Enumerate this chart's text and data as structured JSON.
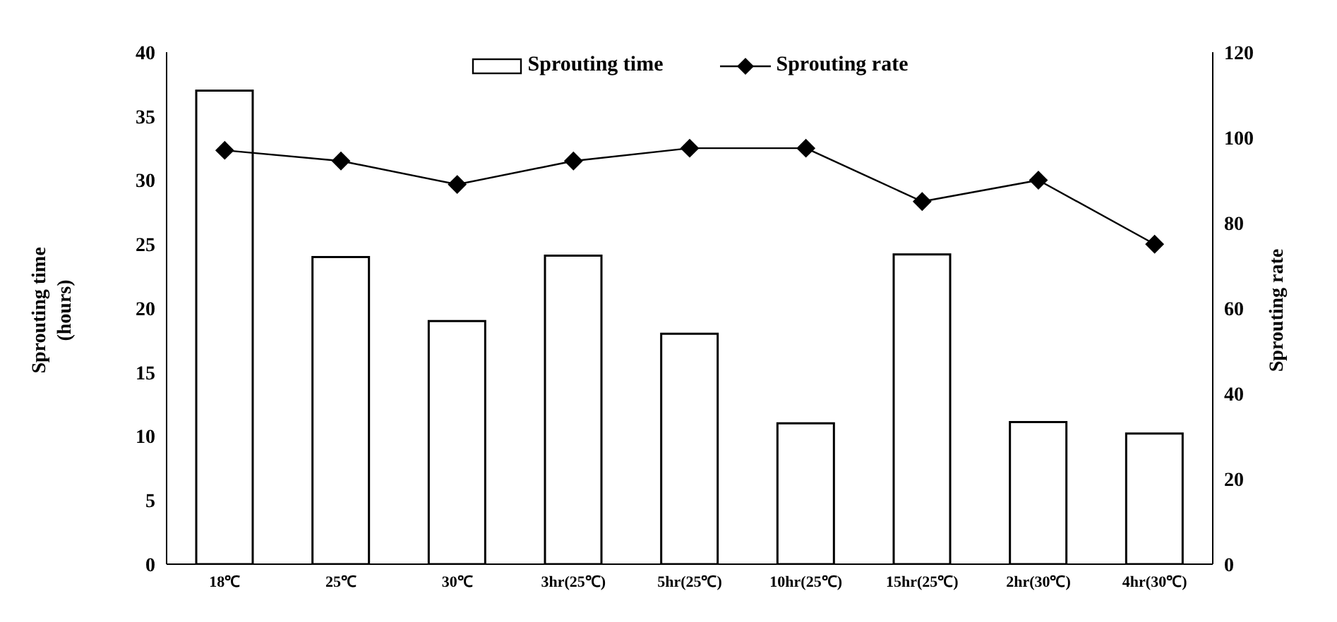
{
  "chart_data": {
    "type": "bar",
    "ylabel": "Sprouting time (hours)",
    "y2label": "Sprouting rate",
    "categories": [
      "18℃",
      "25℃",
      "30℃",
      "3hr(25℃)",
      "5hr(25℃)",
      "10hr(25℃)",
      "15hr(25℃)",
      "2hr(30℃)",
      "4hr(30℃)"
    ],
    "series": [
      {
        "name": "Sprouting time",
        "color": "#ffffff",
        "values": [
          37,
          24,
          19,
          24.1,
          18,
          11,
          24.2,
          11.1,
          10.2
        ]
      },
      {
        "name": "Sprouting rate",
        "type": "line",
        "axis": "y2",
        "color": "#000000",
        "marker": "diamond",
        "values": [
          97,
          94.5,
          89,
          94.5,
          97.5,
          97.5,
          85,
          90,
          75
        ]
      }
    ],
    "ylim": [
      0,
      40
    ],
    "yticks": [
      0,
      5,
      10,
      15,
      20,
      25,
      30,
      35,
      40
    ],
    "y2lim": [
      0,
      120
    ],
    "y2ticks": [
      0,
      20,
      40,
      60,
      80,
      100,
      120
    ],
    "legend": "top",
    "grid": false
  }
}
